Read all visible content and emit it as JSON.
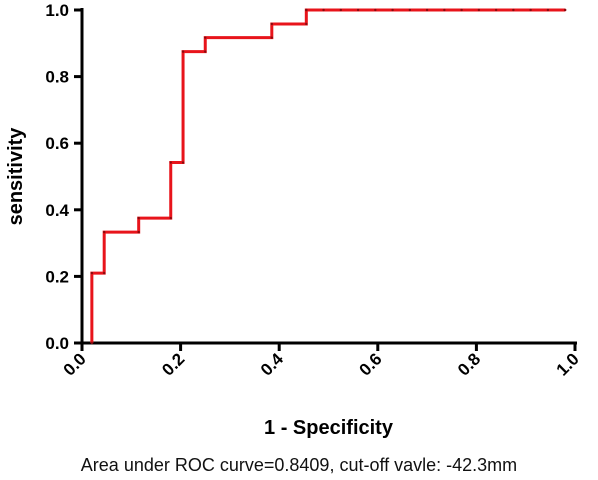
{
  "chart_data": {
    "type": "line",
    "title": "",
    "xlabel": "1 - Specificity",
    "ylabel": "sensitivity",
    "xlim": [
      0,
      1
    ],
    "ylim": [
      0,
      1
    ],
    "x_ticks": [
      "0.0",
      "0.2",
      "0.4",
      "0.6",
      "0.8",
      "1.0"
    ],
    "y_ticks": [
      "0.0",
      "0.2",
      "0.4",
      "0.6",
      "0.8",
      "1.0"
    ],
    "grid": false,
    "legend": "none",
    "series": [
      {
        "color": "#e8141b",
        "step": true,
        "points": [
          [
            0.02,
            0.0
          ],
          [
            0.02,
            0.21
          ],
          [
            0.045,
            0.21
          ],
          [
            0.045,
            0.333
          ],
          [
            0.115,
            0.333
          ],
          [
            0.115,
            0.375
          ],
          [
            0.18,
            0.375
          ],
          [
            0.18,
            0.542
          ],
          [
            0.205,
            0.542
          ],
          [
            0.205,
            0.875
          ],
          [
            0.25,
            0.875
          ],
          [
            0.25,
            0.917
          ],
          [
            0.385,
            0.917
          ],
          [
            0.385,
            0.958
          ],
          [
            0.455,
            0.958
          ],
          [
            0.455,
            1.0
          ],
          [
            0.98,
            1.0
          ]
        ]
      }
    ],
    "caption": "Area under ROC curve=0.8409, cut-off vavle: -42.3mm"
  }
}
